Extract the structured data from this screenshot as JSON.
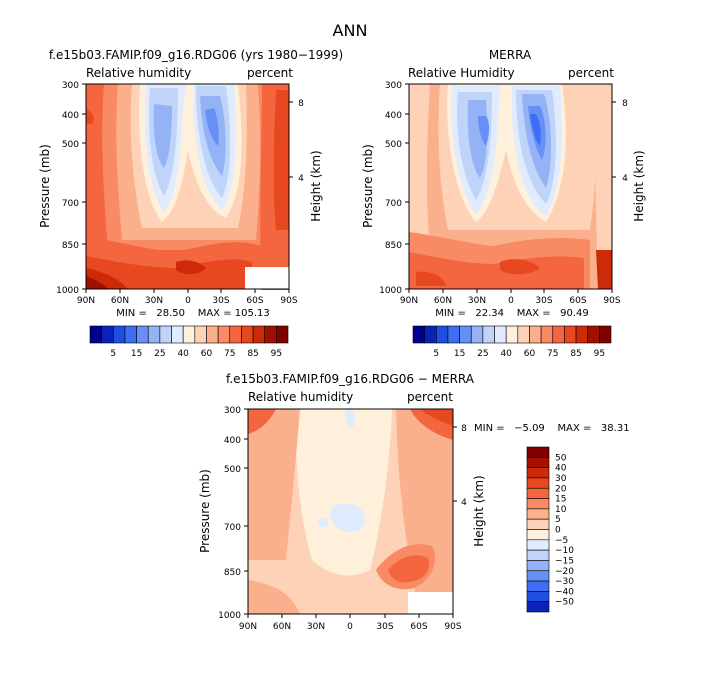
{
  "figure": {
    "title": "ANN"
  },
  "chart_data": [
    {
      "type": "heatmap",
      "panel": "model",
      "title": "f.e15b03.FAMIP.f09_g16.RDG06 (yrs 1980−1999)",
      "left_label": "Relative humidity",
      "right_label": "percent",
      "ylabel": "Pressure (mb)",
      "y2label": "Height (km)",
      "x_ticks": [
        "90N",
        "60N",
        "30N",
        "0",
        "30S",
        "60S",
        "90S"
      ],
      "y_ticks": [
        "300",
        "400",
        "500",
        "700",
        "850",
        "1000"
      ],
      "y2_ticks": [
        "8",
        "4"
      ],
      "ylim": [
        1000,
        300
      ],
      "stats_text": "MIN =   28.50    MAX = 105.13",
      "min": 28.5,
      "max": 105.13,
      "colorbar_labels": [
        "5",
        "15",
        "25",
        "40",
        "60",
        "75",
        "85",
        "95"
      ],
      "colors": [
        "#00008c",
        "#0a22b8",
        "#1f4fe0",
        "#3d6ef5",
        "#6690f5",
        "#94b3f7",
        "#c0d4fa",
        "#e0ecfd",
        "#fff0dc",
        "#fdd2b6",
        "#fbb08d",
        "#f88b64",
        "#f46640",
        "#e84820",
        "#cc2a08",
        "#a01000",
        "#800000"
      ]
    },
    {
      "type": "heatmap",
      "panel": "obs",
      "title": "MERRA",
      "left_label": "Relative Humidity",
      "right_label": "percent",
      "ylabel": "Pressure (mb)",
      "y2label": "Height (km)",
      "x_ticks": [
        "90N",
        "60N",
        "30N",
        "0",
        "30S",
        "60S",
        "90S"
      ],
      "y_ticks": [
        "300",
        "400",
        "500",
        "700",
        "850",
        "1000"
      ],
      "y2_ticks": [
        "8",
        "4"
      ],
      "ylim": [
        1000,
        300
      ],
      "stats_text": "MIN =   22.34    MAX =   90.49",
      "min": 22.34,
      "max": 90.49,
      "colorbar_labels": [
        "5",
        "15",
        "25",
        "40",
        "60",
        "75",
        "85",
        "95"
      ]
    },
    {
      "type": "heatmap",
      "panel": "diff",
      "title": "f.e15b03.FAMIP.f09_g16.RDG06 − MERRA",
      "left_label": "Relative humidity",
      "right_label": "percent",
      "ylabel": "Pressure (mb)",
      "y2label": "Height (km)",
      "x_ticks": [
        "90N",
        "60N",
        "30N",
        "0",
        "30S",
        "60S",
        "90S"
      ],
      "y_ticks": [
        "300",
        "400",
        "500",
        "700",
        "850",
        "1000"
      ],
      "y2_ticks": [
        "8",
        "4"
      ],
      "ylim": [
        1000,
        300
      ],
      "stats_text": "MIN =   −5.09    MAX =   38.31",
      "min": -5.09,
      "max": 38.31,
      "colorbar_labels": [
        "50",
        "40",
        "30",
        "20",
        "15",
        "10",
        "5",
        "0",
        "−5",
        "−10",
        "−15",
        "−20",
        "−30",
        "−40",
        "−50"
      ],
      "colors": [
        "#800000",
        "#a81000",
        "#cc2a08",
        "#e84820",
        "#f46640",
        "#f88b64",
        "#fbb08d",
        "#fdd2b6",
        "#fff0dc",
        "#e0ecfd",
        "#c0d4fa",
        "#94b3f7",
        "#6690f5",
        "#3d6ef5",
        "#1f4fe0",
        "#0a22b8"
      ]
    }
  ]
}
